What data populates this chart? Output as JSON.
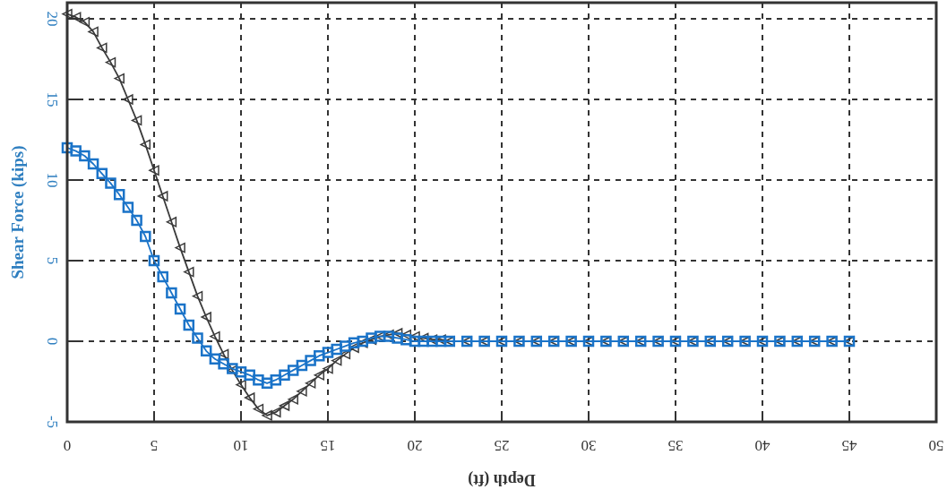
{
  "chart_data": {
    "type": "line",
    "xlabel": "Depth (ft)",
    "ylabel": "Shear Force (kips)",
    "x": [
      0,
      0.5,
      1,
      1.5,
      2,
      2.5,
      3,
      3.5,
      4,
      4.5,
      5,
      5.5,
      6,
      6.5,
      7,
      7.5,
      8,
      8.5,
      9,
      9.5,
      10,
      10.5,
      11,
      11.5,
      12,
      12.5,
      13,
      13.5,
      14,
      14.5,
      15,
      15.5,
      16,
      16.5,
      17,
      17.5,
      18,
      18.5,
      19,
      19.5,
      20,
      20.5,
      21,
      21.5,
      22,
      23,
      24,
      25,
      26,
      27,
      28,
      29,
      30,
      31,
      32,
      33,
      34,
      35,
      36,
      37,
      38,
      39,
      40,
      41,
      42,
      43,
      44,
      45
    ],
    "series": [
      {
        "color": "#3a3a3a",
        "marker": "triangle",
        "values": [
          20.3,
          20.1,
          19.8,
          19.2,
          18.2,
          17.3,
          16.3,
          15.0,
          13.7,
          12.2,
          10.6,
          9.0,
          7.4,
          5.8,
          4.3,
          2.8,
          1.5,
          0.3,
          -0.8,
          -1.8,
          -2.7,
          -3.5,
          -4.2,
          -4.6,
          -4.4,
          -4.0,
          -3.6,
          -3.1,
          -2.6,
          -2.1,
          -1.7,
          -1.2,
          -0.8,
          -0.4,
          -0.1,
          0.1,
          0.3,
          0.4,
          0.5,
          0.4,
          0.3,
          0.2,
          0.1,
          0.1,
          0,
          0,
          0,
          0,
          0,
          0,
          0,
          0,
          0,
          0,
          0,
          0,
          0,
          0,
          0,
          0,
          0,
          0,
          0,
          0,
          0,
          0,
          0,
          0
        ]
      },
      {
        "color": "#1a73c8",
        "marker": "square",
        "values": [
          12.0,
          11.8,
          11.5,
          11.0,
          10.4,
          9.8,
          9.1,
          8.3,
          7.5,
          6.5,
          5.0,
          4.0,
          3.0,
          2.0,
          1.0,
          0.2,
          -0.6,
          -1.1,
          -1.4,
          -1.7,
          -1.9,
          -2.1,
          -2.4,
          -2.6,
          -2.4,
          -2.1,
          -1.8,
          -1.5,
          -1.2,
          -0.9,
          -0.7,
          -0.5,
          -0.3,
          -0.1,
          0.0,
          0.2,
          0.3,
          0.3,
          0.2,
          0.1,
          0,
          0,
          0,
          0,
          0,
          0,
          0,
          0,
          0,
          0,
          0,
          0,
          0,
          0,
          0,
          0,
          0,
          0,
          0,
          0,
          0,
          0,
          0,
          0,
          0,
          0,
          0,
          0
        ]
      }
    ],
    "xlim": [
      0,
      50
    ],
    "xticks": [
      0,
      5,
      10,
      15,
      20,
      25,
      30,
      35,
      40,
      45,
      50
    ],
    "ylim": [
      -5,
      21
    ],
    "yticks": [
      -5,
      0,
      5,
      10,
      15,
      20
    ],
    "grid": true,
    "line_style": "solid"
  }
}
